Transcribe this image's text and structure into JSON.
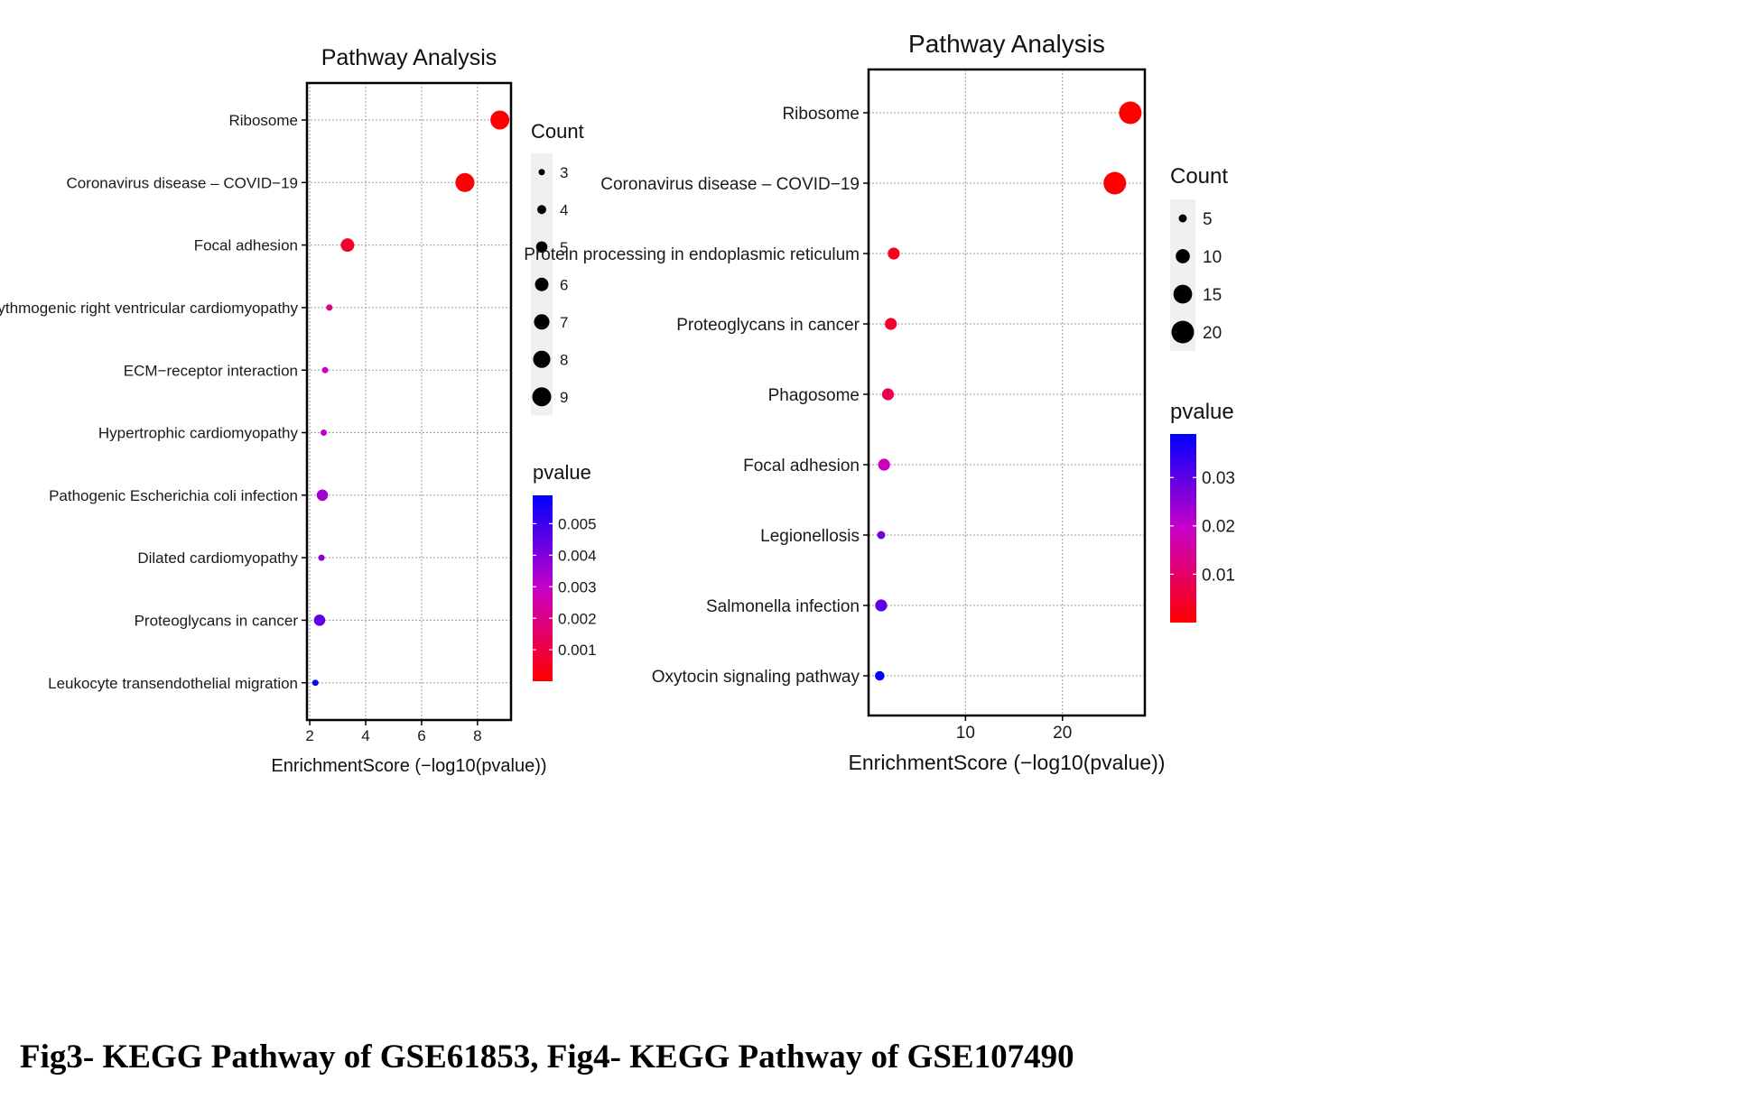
{
  "caption": "Fig3- KEGG Pathway of GSE61853, Fig4- KEGG Pathway of GSE107490",
  "chart_data": [
    {
      "type": "scatter",
      "title": "Pathway Analysis",
      "xlabel": "EnrichmentScore (−log10(pvalue))",
      "ylabel": "",
      "xlim": [
        1.9,
        9.2
      ],
      "x_ticks": [
        2,
        4,
        6,
        8
      ],
      "grid": true,
      "categories": [
        "Ribosome",
        "Coronavirus disease – COVID−19",
        "Focal adhesion",
        "Arrhythmogenic right ventricular cardiomyopathy",
        "ECM−receptor interaction",
        "Hypertrophic cardiomyopathy",
        "Pathogenic Escherichia coli infection",
        "Dilated cardiomyopathy",
        "Proteoglycans in cancer",
        "Leukocyte transendothelial migration"
      ],
      "points": [
        {
          "x": 8.8,
          "count": 9,
          "pvalue": 1e-05
        },
        {
          "x": 7.55,
          "count": 9,
          "pvalue": 0.0001
        },
        {
          "x": 3.35,
          "count": 6,
          "pvalue": 0.0006
        },
        {
          "x": 2.7,
          "count": 3,
          "pvalue": 0.002
        },
        {
          "x": 2.55,
          "count": 3,
          "pvalue": 0.0028
        },
        {
          "x": 2.5,
          "count": 3,
          "pvalue": 0.0031
        },
        {
          "x": 2.45,
          "count": 5,
          "pvalue": 0.0035
        },
        {
          "x": 2.42,
          "count": 3,
          "pvalue": 0.0038
        },
        {
          "x": 2.35,
          "count": 5,
          "pvalue": 0.0045
        },
        {
          "x": 2.2,
          "count": 3,
          "pvalue": 0.0058
        }
      ],
      "size_legend": {
        "title": "Count",
        "values": [
          3,
          4,
          5,
          6,
          7,
          8,
          9
        ]
      },
      "color_legend": {
        "title": "pvalue",
        "ticks": [
          "0.005",
          "0.004",
          "0.003",
          "0.002",
          "0.001"
        ],
        "low_color": "#ff0000",
        "high_color": "#0000ff",
        "max": 0.0059
      }
    },
    {
      "type": "scatter",
      "title": "Pathway Analysis",
      "xlabel": "EnrichmentScore (−log10(pvalue))",
      "ylabel": "",
      "xlim": [
        0,
        28.5
      ],
      "x_ticks": [
        10,
        20
      ],
      "grid": true,
      "categories": [
        "Ribosome",
        "Coronavirus disease – COVID−19",
        "Protein processing in endoplasmic reticulum",
        "Proteoglycans in cancer",
        "Phagosome",
        "Focal adhesion",
        "Legionellosis",
        "Salmonella infection",
        "Oxytocin signaling pathway"
      ],
      "points": [
        {
          "x": 27,
          "count": 20,
          "pvalue": 1e-06
        },
        {
          "x": 25.4,
          "count": 20,
          "pvalue": 5e-06
        },
        {
          "x": 2.6,
          "count": 8,
          "pvalue": 0.0025
        },
        {
          "x": 2.3,
          "count": 8,
          "pvalue": 0.0045
        },
        {
          "x": 2.0,
          "count": 8,
          "pvalue": 0.008
        },
        {
          "x": 1.6,
          "count": 8,
          "pvalue": 0.018
        },
        {
          "x": 1.3,
          "count": 3,
          "pvalue": 0.028
        },
        {
          "x": 1.3,
          "count": 8,
          "pvalue": 0.03
        },
        {
          "x": 1.15,
          "count": 6,
          "pvalue": 0.039
        }
      ],
      "size_legend": {
        "title": "Count",
        "values": [
          5,
          10,
          15,
          20
        ]
      },
      "color_legend": {
        "title": "pvalue",
        "ticks": [
          "0.03",
          "0.02",
          "0.01"
        ],
        "low_color": "#ff0000",
        "high_color": "#0000ff",
        "max": 0.039
      }
    }
  ]
}
